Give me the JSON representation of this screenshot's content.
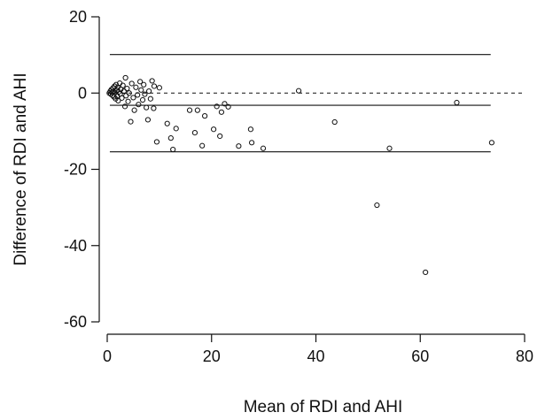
{
  "chart_data": {
    "type": "scatter",
    "xlabel": "Mean of RDI and AHI",
    "ylabel": "Difference of RDI and AHI",
    "xlim": [
      0,
      80
    ],
    "ylim": [
      -60,
      20
    ],
    "xticks": [
      0,
      20,
      40,
      60,
      80
    ],
    "yticks": [
      -60,
      -40,
      -20,
      0,
      20
    ],
    "x_tick_labels": [
      "0",
      "20",
      "40",
      "60",
      "80"
    ],
    "y_tick_labels": [
      "-60",
      "-40",
      "-20",
      "0",
      "20"
    ],
    "grid": false,
    "reference_lines": [
      {
        "kind": "upper-limit",
        "y": 10.1,
        "x_range": [
          0.5,
          73.5
        ],
        "style": "solid"
      },
      {
        "kind": "zero",
        "y": 0,
        "x_range": [
          0,
          80
        ],
        "style": "dashed"
      },
      {
        "kind": "mean-difference",
        "y": -3.2,
        "x_range": [
          0.5,
          73.5
        ],
        "style": "solid"
      },
      {
        "kind": "lower-limit",
        "y": -15.4,
        "x_range": [
          0.5,
          73.5
        ],
        "style": "solid"
      }
    ],
    "points": [
      [
        0.4,
        0.0
      ],
      [
        0.6,
        0.5
      ],
      [
        0.7,
        -0.3
      ],
      [
        0.8,
        0.9
      ],
      [
        0.9,
        0.2
      ],
      [
        1.0,
        -0.6
      ],
      [
        1.1,
        1.3
      ],
      [
        1.2,
        0.4
      ],
      [
        1.3,
        -1.0
      ],
      [
        1.4,
        1.8
      ],
      [
        1.5,
        0.1
      ],
      [
        1.6,
        -1.5
      ],
      [
        1.7,
        2.2
      ],
      [
        1.8,
        0.7
      ],
      [
        1.9,
        -0.8
      ],
      [
        2.0,
        1.5
      ],
      [
        2.1,
        -2.0
      ],
      [
        2.2,
        0.3
      ],
      [
        2.4,
        2.6
      ],
      [
        2.5,
        -0.2
      ],
      [
        2.6,
        1.0
      ],
      [
        2.8,
        -1.3
      ],
      [
        3.0,
        2.0
      ],
      [
        3.2,
        0.5
      ],
      [
        3.4,
        -3.5
      ],
      [
        3.5,
        4.0
      ],
      [
        3.6,
        -0.7
      ],
      [
        3.8,
        1.2
      ],
      [
        4.0,
        -2.2
      ],
      [
        4.2,
        0.0
      ],
      [
        4.5,
        -7.5
      ],
      [
        4.7,
        2.5
      ],
      [
        5.0,
        -1.2
      ],
      [
        5.2,
        -4.5
      ],
      [
        5.5,
        1.5
      ],
      [
        5.8,
        -0.5
      ],
      [
        6.0,
        -3.0
      ],
      [
        6.3,
        3.0
      ],
      [
        6.5,
        0.8
      ],
      [
        6.8,
        -1.8
      ],
      [
        7.0,
        2.2
      ],
      [
        7.2,
        -0.3
      ],
      [
        7.5,
        -3.8
      ],
      [
        7.8,
        -7.0
      ],
      [
        8.0,
        0.5
      ],
      [
        8.3,
        -1.5
      ],
      [
        8.6,
        3.2
      ],
      [
        8.9,
        -4.0
      ],
      [
        9.0,
        1.8
      ],
      [
        9.5,
        -12.8
      ],
      [
        10.0,
        1.4
      ],
      [
        11.5,
        -8.0
      ],
      [
        12.2,
        -11.8
      ],
      [
        12.6,
        -14.8
      ],
      [
        13.2,
        -9.3
      ],
      [
        15.8,
        -4.5
      ],
      [
        16.8,
        -10.4
      ],
      [
        17.3,
        -4.5
      ],
      [
        18.2,
        -13.8
      ],
      [
        18.7,
        -6.0
      ],
      [
        20.4,
        -9.5
      ],
      [
        21.0,
        -3.5
      ],
      [
        21.6,
        -11.3
      ],
      [
        21.9,
        -5.0
      ],
      [
        22.5,
        -2.8
      ],
      [
        23.2,
        -3.6
      ],
      [
        25.2,
        -13.9
      ],
      [
        27.5,
        -9.5
      ],
      [
        27.7,
        -13.0
      ],
      [
        29.9,
        -14.5
      ],
      [
        36.7,
        0.6
      ],
      [
        43.6,
        -7.6
      ],
      [
        51.7,
        -29.4
      ],
      [
        54.1,
        -14.5
      ],
      [
        61.0,
        -47.0
      ],
      [
        67.0,
        -2.5
      ],
      [
        73.7,
        -13.0
      ]
    ]
  }
}
